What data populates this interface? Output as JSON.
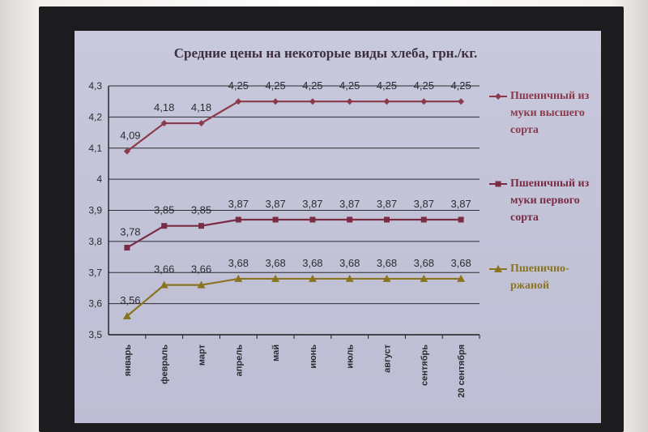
{
  "chart_data": {
    "type": "line",
    "title": "Средние цены на некоторые виды хлеба, грн./кг.",
    "categories": [
      "январь",
      "февраль",
      "март",
      "апрель",
      "май",
      "июнь",
      "июль",
      "август",
      "сентябрь",
      "20 сентября"
    ],
    "yticks": [
      "3,5",
      "3,6",
      "3,7",
      "3,8",
      "3,9",
      "4",
      "4,1",
      "4,2",
      "4,3"
    ],
    "ylim": [
      3.5,
      4.3
    ],
    "grid": true,
    "legend_position": "right",
    "series": [
      {
        "name": "Пшеничный из муки высшего сорта",
        "legend_lines": [
          "Пшеничный",
          "из муки",
          "высшего",
          "сорта"
        ],
        "marker": "diamond",
        "color": "#8a3a4a",
        "values": [
          4.09,
          4.18,
          4.18,
          4.25,
          4.25,
          4.25,
          4.25,
          4.25,
          4.25,
          4.25
        ],
        "labels": [
          "4,09",
          "4,18",
          "4,18",
          "4,25",
          "4,25",
          "4,25",
          "4,25",
          "4,25",
          "4,25",
          "4,25"
        ]
      },
      {
        "name": "Пшеничный из муки первого сорта",
        "legend_lines": [
          "Пшеничный",
          "из муки",
          "первого",
          "сорта"
        ],
        "marker": "square",
        "color": "#7a2c44",
        "values": [
          3.78,
          3.85,
          3.85,
          3.87,
          3.87,
          3.87,
          3.87,
          3.87,
          3.87,
          3.87
        ],
        "labels": [
          "3,78",
          "3,85",
          "3,85",
          "3,87",
          "3,87",
          "3,87",
          "3,87",
          "3,87",
          "3,87",
          "3,87"
        ]
      },
      {
        "name": "Пшенично-ржаной",
        "legend_lines": [
          "Пшенично-",
          "ржаной"
        ],
        "marker": "triangle",
        "color": "#8a7420",
        "values": [
          3.56,
          3.66,
          3.66,
          3.68,
          3.68,
          3.68,
          3.68,
          3.68,
          3.68,
          3.68
        ],
        "labels": [
          "3,56",
          "3,66",
          "3,66",
          "3,68",
          "3,68",
          "3,68",
          "3,68",
          "3,68",
          "3,68",
          "3,68"
        ]
      }
    ]
  },
  "colors": {
    "axis": "#1e1e22",
    "grid": "#2a2a30",
    "label": "#2a2a2f"
  }
}
